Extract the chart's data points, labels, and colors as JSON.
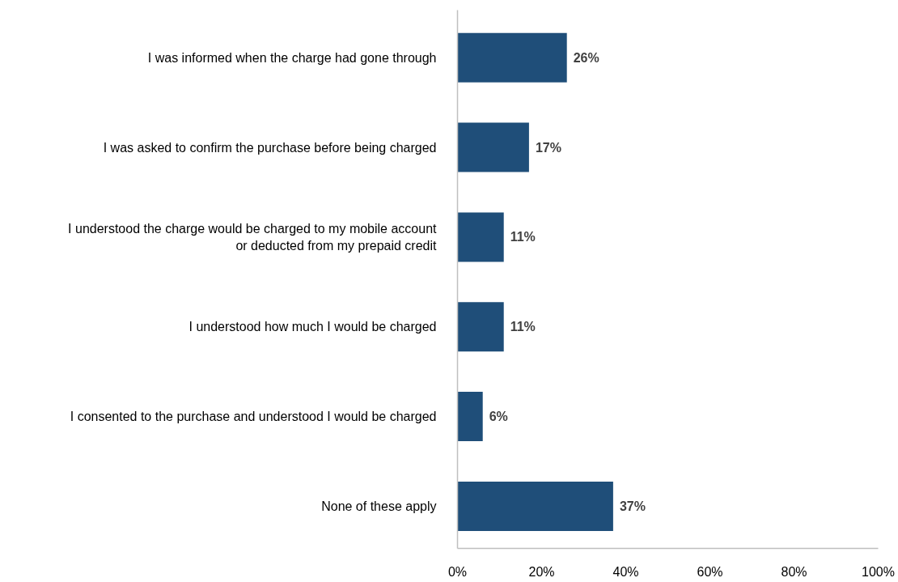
{
  "chart_data": {
    "type": "bar",
    "orientation": "horizontal",
    "categories": [
      "I was informed when the charge had gone through",
      "I was asked to confirm the purchase before being charged",
      "I understood the charge would be charged to my mobile account\nor deducted from my prepaid credit",
      "I understood how much I would be charged",
      "I consented to the purchase and understood I would be charged",
      "None of these apply"
    ],
    "values": [
      26,
      17,
      11,
      11,
      6,
      37
    ],
    "value_labels": [
      "26%",
      "17%",
      "11%",
      "11%",
      "6%",
      "37%"
    ],
    "color": "#1f4e79",
    "xlim": [
      0,
      100
    ],
    "xticks": [
      {
        "value": 0,
        "label": "0%"
      },
      {
        "value": 20,
        "label": "20%"
      },
      {
        "value": 40,
        "label": "40%"
      },
      {
        "value": 60,
        "label": "60%"
      },
      {
        "value": 80,
        "label": "80%"
      },
      {
        "value": 100,
        "label": "100%"
      }
    ],
    "grid": false
  }
}
